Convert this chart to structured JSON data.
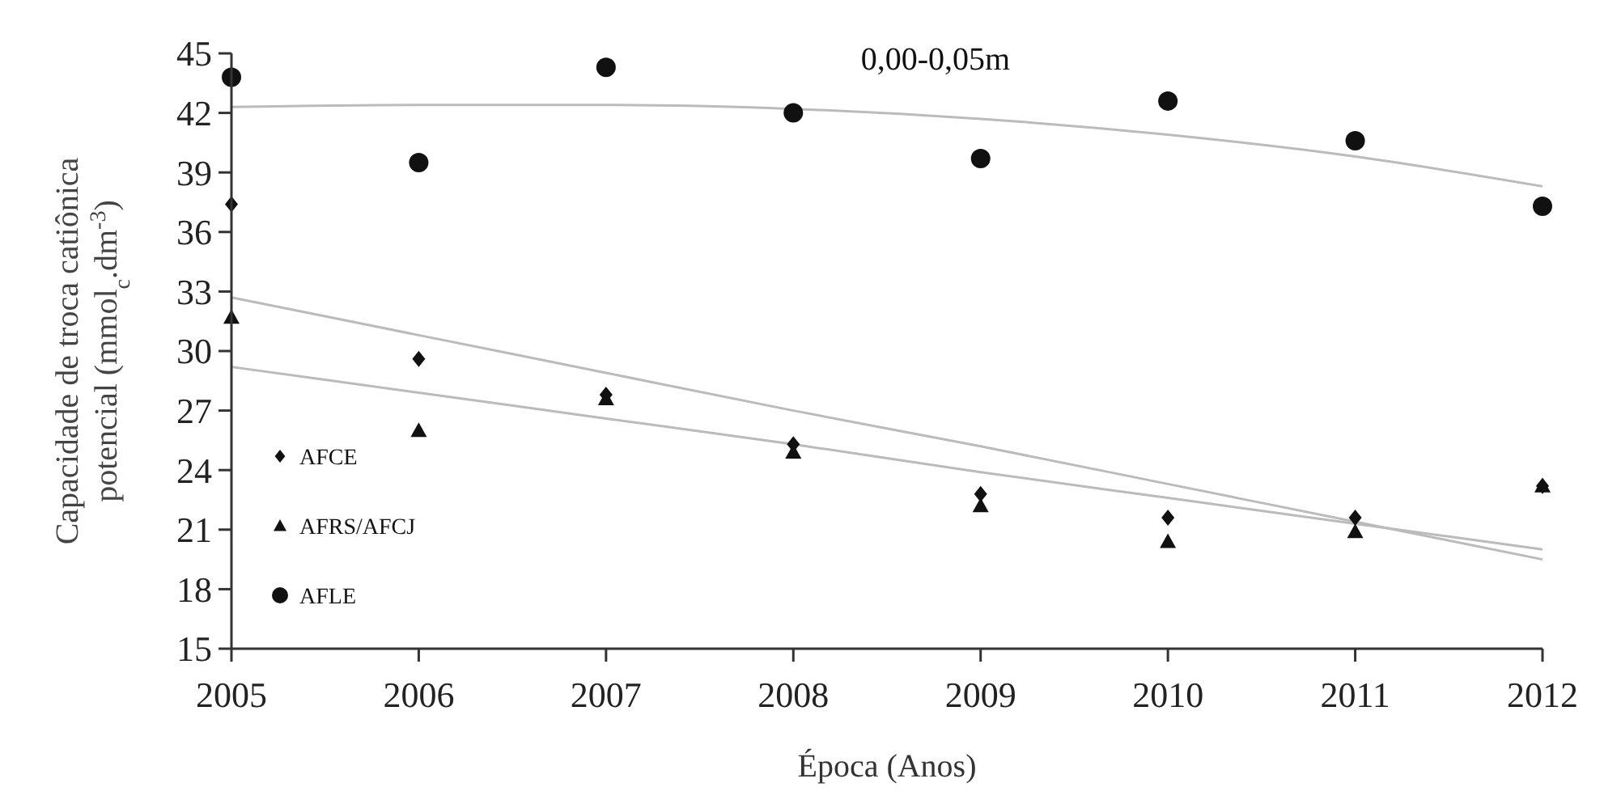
{
  "chart_data": {
    "type": "scatter",
    "title": "0,00-0,05m",
    "xlabel": "Época (Anos)",
    "ylabel": "Capacidade de troca catiônica\npotencial  (mmol$_{c}$.dm$^{-3}$)",
    "x": [
      2005,
      2006,
      2007,
      2008,
      2009,
      2010,
      2011,
      2012
    ],
    "series": [
      {
        "name": "AFCE",
        "color": "#111111",
        "marker": "diamond",
        "values": [
          37.4,
          29.6,
          27.8,
          25.3,
          22.8,
          21.6,
          21.6,
          23.2
        ]
      },
      {
        "name": "AFRS/AFCJ",
        "color": "#111111",
        "marker": "triangle",
        "values": [
          31.7,
          26.0,
          27.6,
          24.9,
          22.2,
          20.4,
          20.9,
          23.2
        ]
      },
      {
        "name": "AFLE",
        "color": "#111111",
        "marker": "circle",
        "values": [
          43.8,
          39.5,
          44.3,
          42.0,
          39.7,
          42.6,
          40.6,
          37.3
        ]
      },
      {
        "type": "line",
        "color": "#bbbbbb",
        "marker": "none",
        "values": [
          42.3,
          42.4,
          42.4,
          42.2,
          41.7,
          40.9,
          39.8,
          38.3
        ]
      },
      {
        "type": "line",
        "color": "#bbbbbb",
        "marker": "none",
        "values": [
          32.7,
          30.8,
          28.9,
          27.0,
          25.2,
          23.3,
          21.4,
          19.5
        ]
      },
      {
        "type": "line",
        "color": "#bbbbbb",
        "marker": "none",
        "values": [
          29.2,
          27.9,
          26.6,
          25.3,
          23.9,
          22.6,
          21.3,
          20.0
        ]
      }
    ],
    "xlim": [
      2005,
      2012
    ],
    "xticks": [
      2005,
      2006,
      2007,
      2008,
      2009,
      2010,
      2011,
      2012
    ],
    "ylim": [
      15,
      45
    ],
    "yticks": [
      15,
      18,
      21,
      24,
      27,
      30,
      33,
      36,
      39,
      42,
      45
    ],
    "legend": "bottom left",
    "line_style": "solid"
  }
}
